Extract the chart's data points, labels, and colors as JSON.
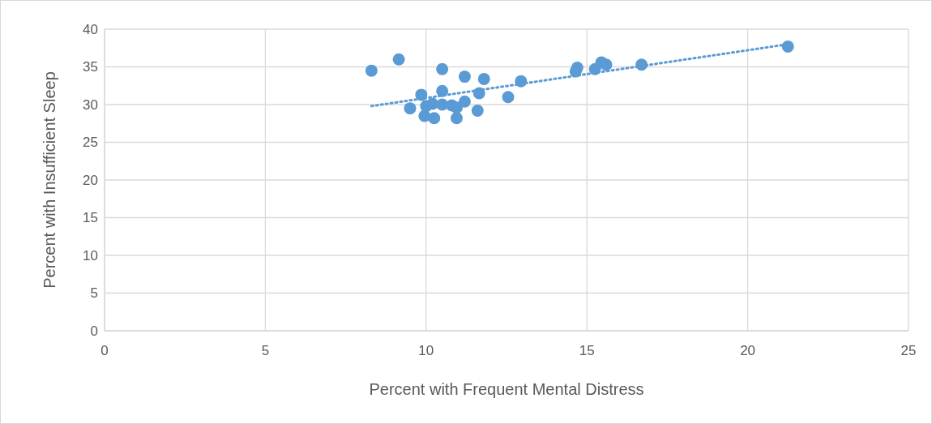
{
  "chart_data": {
    "type": "scatter",
    "xlabel": "Percent with Frequent Mental Distress",
    "ylabel": "Percent with Insufficient Sleep",
    "xlim": [
      0,
      25
    ],
    "xticks": [
      0,
      5,
      10,
      15,
      20,
      25
    ],
    "ylim": [
      0,
      40
    ],
    "yticks": [
      0,
      5,
      10,
      15,
      20,
      25,
      30,
      35,
      40
    ],
    "grid": true,
    "series": [
      {
        "color": "#5b9bd5",
        "marker": "circle",
        "x": [
          8.3,
          9.15,
          10.5,
          11.2,
          11.8,
          12.95,
          9.85,
          10.5,
          11.65,
          12.55,
          9.5,
          9.95,
          10.25,
          10.95,
          11.6,
          10.2,
          10.0,
          10.5,
          10.8,
          10.95,
          11.2,
          14.65,
          14.7,
          15.25,
          15.45,
          15.6,
          16.7,
          21.25
        ],
        "values": [
          34.5,
          36.0,
          34.7,
          33.7,
          33.4,
          33.1,
          31.3,
          31.8,
          31.5,
          31.0,
          29.5,
          28.5,
          28.2,
          28.2,
          29.2,
          30.1,
          29.8,
          30.0,
          29.9,
          29.6,
          30.4,
          34.4,
          34.9,
          34.7,
          35.6,
          35.3,
          35.3,
          37.7
        ]
      },
      {
        "type": "line",
        "color": "#5b9bd5",
        "line_style": "dotted",
        "marker": "none",
        "x": [
          8.3,
          21.25
        ],
        "values": [
          29.8,
          38.0
        ]
      }
    ]
  }
}
